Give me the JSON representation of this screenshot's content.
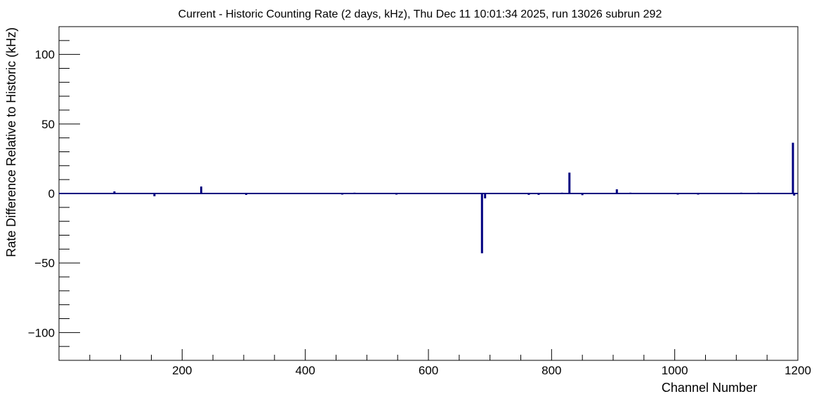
{
  "chart_data": {
    "type": "bar",
    "title": "Current - Historic Counting Rate (2 days, kHz), Thu Dec 11 10:01:34 2025, run 13026 subrun 292",
    "xlabel": "Channel Number",
    "ylabel": "Rate Difference Relative to Historic (kHz)",
    "xlim": [
      0,
      1200
    ],
    "ylim": [
      -120,
      120
    ],
    "x_ticks": [
      200,
      400,
      600,
      800,
      1000,
      1200
    ],
    "x_tick_labels": [
      "200",
      "400",
      "600",
      "800",
      "1000",
      "1200"
    ],
    "y_ticks": [
      -100,
      -50,
      0,
      50,
      100
    ],
    "y_tick_labels": [
      "−100",
      "−50",
      "0",
      "50",
      "100"
    ],
    "grid": false,
    "legend": "none",
    "series": [
      {
        "color": "#000080",
        "points": [
          {
            "x": 90,
            "y": 1.5
          },
          {
            "x": 155,
            "y": -2.0
          },
          {
            "x": 231,
            "y": 5.0
          },
          {
            "x": 304,
            "y": -1.0
          },
          {
            "x": 460,
            "y": -0.8
          },
          {
            "x": 480,
            "y": 0.6
          },
          {
            "x": 548,
            "y": -0.8
          },
          {
            "x": 687,
            "y": -43.0
          },
          {
            "x": 692,
            "y": -3.5
          },
          {
            "x": 763,
            "y": -1.0
          },
          {
            "x": 779,
            "y": -1.0
          },
          {
            "x": 817,
            "y": 0.6
          },
          {
            "x": 829,
            "y": 15.0
          },
          {
            "x": 850,
            "y": -1.2
          },
          {
            "x": 906,
            "y": 3.0
          },
          {
            "x": 928,
            "y": 0.6
          },
          {
            "x": 1005,
            "y": -0.8
          },
          {
            "x": 1038,
            "y": -0.8
          },
          {
            "x": 1108,
            "y": 0.6
          },
          {
            "x": 1136,
            "y": 0.6
          },
          {
            "x": 1192,
            "y": 36.5
          },
          {
            "x": 1194,
            "y": -1.5
          }
        ]
      }
    ]
  }
}
